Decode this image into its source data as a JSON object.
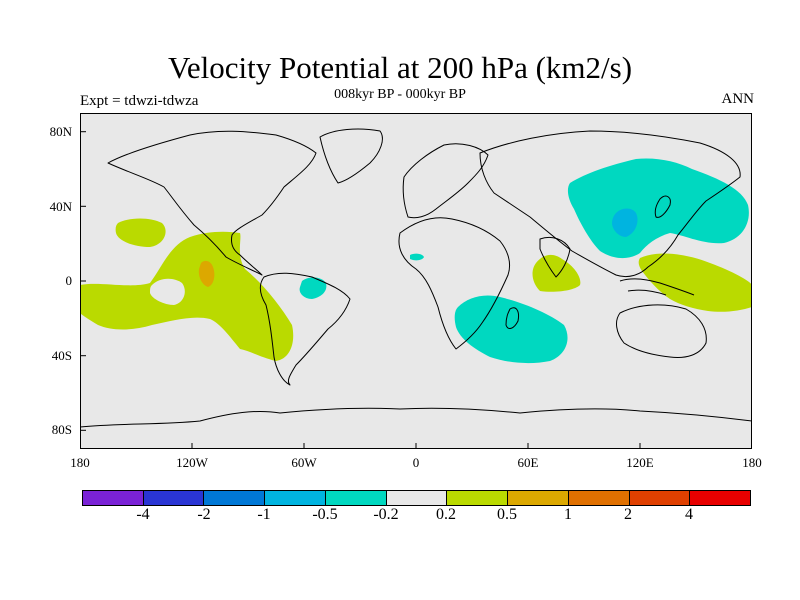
{
  "title": "Velocity Potential at 200 hPa (km2/s)",
  "subtitle": "008kyr BP - 000kyr BP",
  "expt_label": "Expt = tdwzi-tdwza",
  "period_label": "ANN",
  "lat_labels": [
    "80N",
    "40N",
    "0",
    "40S",
    "80S"
  ],
  "lon_labels": [
    "180",
    "120W",
    "60W",
    "0",
    "60E",
    "120E",
    "180"
  ],
  "colorbar": {
    "colors": [
      "#7a22d6",
      "#2a35d4",
      "#0078d6",
      "#00b4e0",
      "#00d8c0",
      "#e8e8e8",
      "#bada00",
      "#dca800",
      "#e07000",
      "#e04000",
      "#e80000"
    ],
    "labels": [
      "-4",
      "-2",
      "-1",
      "-0.5",
      "-0.2",
      "0.2",
      "0.5",
      "1",
      "2",
      "4"
    ]
  },
  "colors": {
    "background": "#e8e8e8",
    "positive_region": "#bada00",
    "negative_region": "#00d8c0",
    "strong_positive": "#dca800",
    "strong_negative": "#00b4e0",
    "coastline": "#000000"
  }
}
